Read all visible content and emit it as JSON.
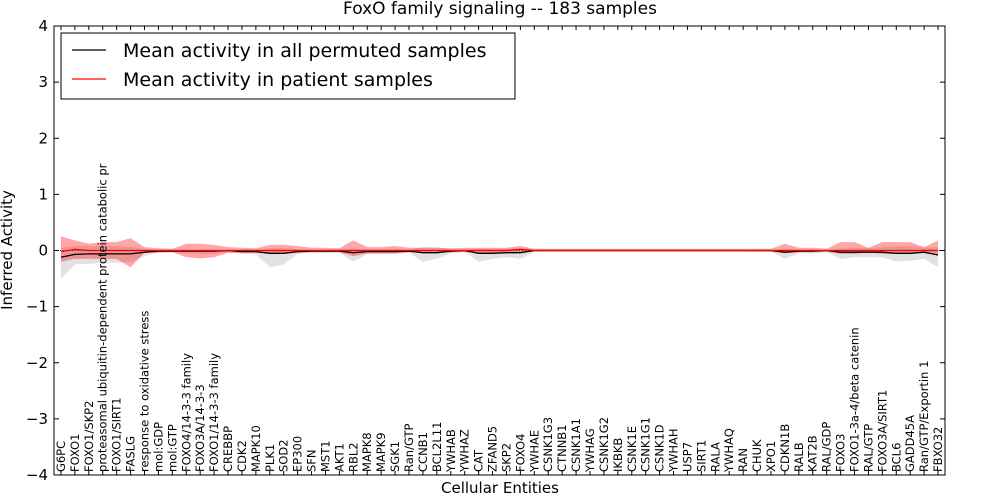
{
  "chart_data": {
    "type": "line",
    "title": "FoxO family signaling -- 183 samples",
    "xlabel": "Cellular Entities",
    "ylabel": "Inferred Activity",
    "ylim": [
      -4,
      4
    ],
    "yticks": [
      -4,
      -3,
      -2,
      -1,
      0,
      1,
      2,
      3,
      4
    ],
    "ytick_labels": [
      "−4",
      "−3",
      "−2",
      "−1",
      "0",
      "1",
      "2",
      "3",
      "4"
    ],
    "legend_position": "top-left",
    "categories": [
      "G6PC",
      "FOXO1",
      "FOXO1/SKP2",
      "proteasomal ubiquitin-dependent protein catabolic pr",
      "FOXO1/SIRT1",
      "FASLG",
      "response to oxidative stress",
      "mol:GDP",
      "mol:GTP",
      "FOXO4/14-3-3 family",
      "FOXO3A/14-3-3",
      "FOXO1/14-3-3 family",
      "CREBBP",
      "CDK2",
      "MAPK10",
      "PLK1",
      "SOD2",
      "EP300",
      "SFN",
      "MST1",
      "AKT1",
      "RBL2",
      "MAPK8",
      "MAPK9",
      "SGK1",
      "Ran/GTP",
      "CCNB1",
      "BCL2L11",
      "YWHAB",
      "YWHAZ",
      "CAT",
      "ZFAND5",
      "SKP2",
      "FOXO4",
      "YWHAE",
      "CSNK1G3",
      "CTNNB1",
      "CSNK1A1",
      "YWHAG",
      "CSNK1G2",
      "IKBKB",
      "CSNK1E",
      "CSNK1G1",
      "CSNK1D",
      "YWHAH",
      "USP7",
      "SIRT1",
      "RALA",
      "YWHAQ",
      "RAN",
      "CHUK",
      "XPO1",
      "CDKN1B",
      "RALB",
      "KAT2B",
      "RAL/GDP",
      "FOXO3",
      "FOXO1-3a-4/beta catenin",
      "RAL/GTP",
      "FOXO3A/SIRT1",
      "BCL6",
      "GADD45A",
      "Ran/GTP/Exportin 1",
      "FBXO32"
    ],
    "series": [
      {
        "name": "Mean activity in all permuted samples",
        "color": "#000000",
        "values": [
          -0.12,
          -0.07,
          -0.06,
          -0.06,
          -0.06,
          -0.06,
          -0.03,
          -0.01,
          -0.01,
          -0.01,
          -0.01,
          -0.01,
          0.0,
          -0.02,
          -0.02,
          -0.05,
          -0.05,
          -0.02,
          -0.01,
          -0.01,
          -0.01,
          -0.04,
          -0.02,
          -0.02,
          -0.02,
          -0.01,
          -0.04,
          -0.04,
          -0.01,
          0.0,
          -0.05,
          -0.05,
          -0.04,
          -0.04,
          0.0,
          0.0,
          0.0,
          0.0,
          0.0,
          0.0,
          0.0,
          0.0,
          0.0,
          0.0,
          0.0,
          0.0,
          0.0,
          0.0,
          0.0,
          0.0,
          0.0,
          0.0,
          -0.03,
          -0.01,
          -0.01,
          0.0,
          -0.03,
          -0.03,
          -0.03,
          -0.03,
          -0.05,
          -0.05,
          -0.03,
          -0.08
        ],
        "band_upper": [
          0.05,
          0.08,
          0.08,
          0.08,
          0.08,
          0.06,
          0.03,
          0.01,
          0.01,
          0.01,
          0.01,
          0.01,
          0.01,
          0.02,
          0.02,
          0.04,
          0.05,
          0.02,
          0.01,
          0.02,
          0.02,
          0.03,
          0.02,
          0.02,
          0.02,
          0.01,
          0.06,
          0.06,
          0.02,
          0.01,
          0.03,
          0.03,
          0.03,
          0.04,
          0.01,
          0.01,
          0.01,
          0.01,
          0.01,
          0.01,
          0.01,
          0.01,
          0.01,
          0.01,
          0.01,
          0.01,
          0.01,
          0.01,
          0.01,
          0.01,
          0.01,
          0.01,
          0.03,
          0.02,
          0.02,
          0.01,
          0.03,
          0.05,
          0.04,
          0.06,
          0.07,
          0.08,
          0.05,
          0.06
        ],
        "band_lower": [
          -0.5,
          -0.25,
          -0.24,
          -0.22,
          -0.22,
          -0.2,
          -0.1,
          -0.03,
          -0.03,
          -0.05,
          -0.06,
          -0.06,
          -0.03,
          -0.06,
          -0.07,
          -0.3,
          -0.25,
          -0.06,
          -0.04,
          -0.04,
          -0.04,
          -0.2,
          -0.07,
          -0.07,
          -0.07,
          -0.04,
          -0.2,
          -0.15,
          -0.05,
          -0.02,
          -0.2,
          -0.15,
          -0.12,
          -0.15,
          -0.02,
          -0.01,
          -0.01,
          -0.01,
          -0.01,
          -0.01,
          -0.01,
          -0.01,
          -0.01,
          -0.01,
          -0.01,
          -0.01,
          -0.01,
          -0.01,
          -0.01,
          -0.01,
          -0.02,
          -0.02,
          -0.15,
          -0.05,
          -0.05,
          -0.03,
          -0.15,
          -0.12,
          -0.12,
          -0.12,
          -0.2,
          -0.18,
          -0.15,
          -0.3
        ]
      },
      {
        "name": "Mean activity in patient samples",
        "color": "#ff0000",
        "values": [
          -0.02,
          0.02,
          0.0,
          0.0,
          0.0,
          0.0,
          0.0,
          0.0,
          0.0,
          0.0,
          0.0,
          0.0,
          0.0,
          0.0,
          0.0,
          0.0,
          0.0,
          0.0,
          0.0,
          0.0,
          0.0,
          0.0,
          0.0,
          0.0,
          0.0,
          0.0,
          0.0,
          0.0,
          0.0,
          0.0,
          0.0,
          0.0,
          0.0,
          0.02,
          0.0,
          0.0,
          0.0,
          0.0,
          0.0,
          0.0,
          0.0,
          0.0,
          0.0,
          0.0,
          0.0,
          0.0,
          0.0,
          0.0,
          0.0,
          0.0,
          0.0,
          0.0,
          0.0,
          0.0,
          0.0,
          0.0,
          0.0,
          0.0,
          0.0,
          0.0,
          0.0,
          0.0,
          0.0,
          0.0
        ],
        "band_upper": [
          0.25,
          0.18,
          0.12,
          0.15,
          0.15,
          0.22,
          0.06,
          0.04,
          0.03,
          0.12,
          0.12,
          0.1,
          0.06,
          0.05,
          0.04,
          0.1,
          0.1,
          0.08,
          0.05,
          0.05,
          0.04,
          0.18,
          0.06,
          0.06,
          0.08,
          0.05,
          0.05,
          0.05,
          0.04,
          0.05,
          0.05,
          0.05,
          0.05,
          0.08,
          0.03,
          0.03,
          0.03,
          0.03,
          0.03,
          0.03,
          0.03,
          0.03,
          0.03,
          0.03,
          0.03,
          0.03,
          0.03,
          0.03,
          0.03,
          0.03,
          0.03,
          0.03,
          0.12,
          0.05,
          0.05,
          0.03,
          0.15,
          0.15,
          0.05,
          0.15,
          0.15,
          0.15,
          0.06,
          0.18
        ],
        "band_lower": [
          -0.2,
          -0.15,
          -0.15,
          -0.15,
          -0.15,
          -0.3,
          -0.04,
          -0.04,
          -0.03,
          -0.12,
          -0.14,
          -0.12,
          -0.04,
          -0.04,
          -0.04,
          -0.06,
          -0.06,
          -0.04,
          -0.03,
          -0.03,
          -0.03,
          -0.1,
          -0.05,
          -0.05,
          -0.05,
          -0.03,
          -0.04,
          -0.04,
          -0.03,
          -0.03,
          -0.04,
          -0.04,
          -0.03,
          -0.04,
          -0.02,
          -0.02,
          -0.02,
          -0.02,
          -0.02,
          -0.02,
          -0.02,
          -0.02,
          -0.02,
          -0.02,
          -0.02,
          -0.02,
          -0.02,
          -0.02,
          -0.02,
          -0.02,
          -0.02,
          -0.02,
          -0.05,
          -0.03,
          -0.03,
          -0.02,
          -0.06,
          -0.06,
          -0.03,
          -0.06,
          -0.06,
          -0.06,
          -0.03,
          -0.08
        ]
      }
    ]
  }
}
